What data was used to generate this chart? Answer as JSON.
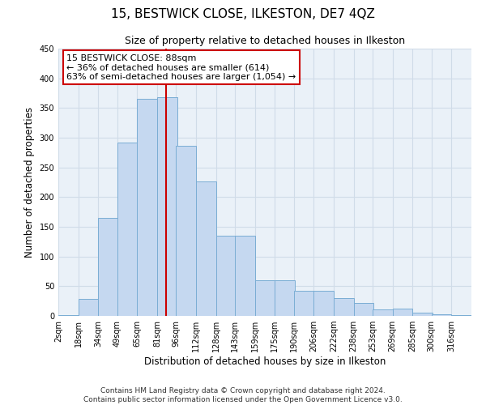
{
  "title": "15, BESTWICK CLOSE, ILKESTON, DE7 4QZ",
  "subtitle": "Size of property relative to detached houses in Ilkeston",
  "xlabel": "Distribution of detached houses by size in Ilkeston",
  "ylabel": "Number of detached properties",
  "footer_line1": "Contains HM Land Registry data © Crown copyright and database right 2024.",
  "footer_line2": "Contains public sector information licensed under the Open Government Licence v3.0.",
  "annotation_title": "15 BESTWICK CLOSE: 88sqm",
  "annotation_line2": "← 36% of detached houses are smaller (614)",
  "annotation_line3": "63% of semi-detached houses are larger (1,054) →",
  "property_size": 88,
  "bar_left_edges": [
    2,
    18,
    34,
    49,
    65,
    81,
    96,
    112,
    128,
    143,
    159,
    175,
    190,
    206,
    222,
    238,
    253,
    269,
    285,
    300,
    316
  ],
  "bar_heights": [
    2,
    28,
    165,
    292,
    365,
    368,
    287,
    226,
    135,
    135,
    60,
    60,
    42,
    42,
    30,
    22,
    11,
    12,
    6,
    3,
    2
  ],
  "bin_width": 16,
  "bar_color": "#c5d8f0",
  "bar_edge_color": "#7aadd4",
  "red_line_color": "#cc0000",
  "annotation_box_color": "#ffffff",
  "annotation_box_edge": "#cc0000",
  "grid_color": "#d0dce8",
  "bg_color": "#eaf1f8",
  "ylim": [
    0,
    450
  ],
  "yticks": [
    0,
    50,
    100,
    150,
    200,
    250,
    300,
    350,
    400,
    450
  ],
  "x_tick_labels": [
    "2sqm",
    "18sqm",
    "34sqm",
    "49sqm",
    "65sqm",
    "81sqm",
    "96sqm",
    "112sqm",
    "128sqm",
    "143sqm",
    "159sqm",
    "175sqm",
    "190sqm",
    "206sqm",
    "222sqm",
    "238sqm",
    "253sqm",
    "269sqm",
    "285sqm",
    "300sqm",
    "316sqm"
  ],
  "title_fontsize": 11,
  "subtitle_fontsize": 9,
  "axis_label_fontsize": 8.5,
  "tick_fontsize": 7,
  "annotation_fontsize": 8,
  "footer_fontsize": 6.5
}
